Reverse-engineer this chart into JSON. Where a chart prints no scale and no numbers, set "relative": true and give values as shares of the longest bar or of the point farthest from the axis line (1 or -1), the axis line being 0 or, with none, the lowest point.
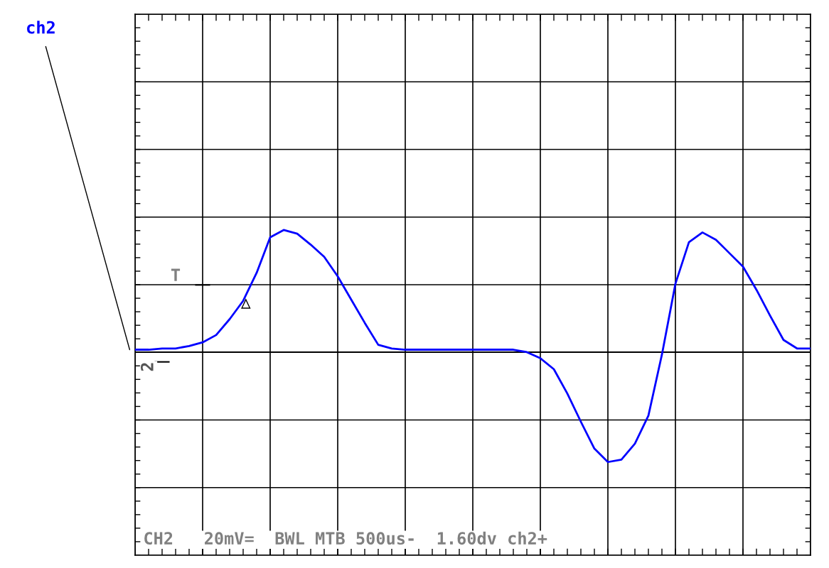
{
  "chart_data": {
    "type": "line",
    "relative": true,
    "grid": true,
    "marker": "none",
    "line_style": "solid",
    "categories": [
      null,
      null,
      null,
      null,
      null,
      null,
      null,
      null,
      null,
      null,
      null,
      null,
      null,
      null,
      null,
      null,
      null,
      null,
      null,
      null,
      null,
      null,
      null,
      null,
      null,
      null,
      null,
      null,
      null,
      null,
      null,
      null,
      null,
      null,
      null,
      null,
      null,
      null,
      null,
      null,
      null,
      null,
      null,
      null,
      null,
      null,
      null,
      null,
      null,
      null,
      null
    ],
    "series": [
      {
        "color": "#0000ff",
        "values": [
          0.02,
          0.02,
          0.03,
          0.03,
          0.05,
          0.08,
          0.14,
          0.27,
          0.42,
          0.65,
          0.94,
          1.0,
          0.97,
          0.88,
          0.78,
          0.62,
          0.43,
          0.24,
          0.06,
          0.03,
          0.02,
          0.02,
          0.02,
          0.02,
          0.02,
          0.02,
          0.02,
          0.02,
          0.02,
          0.0,
          -0.05,
          -0.14,
          -0.34,
          -0.57,
          -0.79,
          -0.9,
          -0.88,
          -0.75,
          -0.52,
          -0.02,
          0.56,
          0.9,
          0.98,
          0.92,
          0.81,
          0.7,
          0.51,
          0.3,
          0.1,
          0.03,
          0.03
        ]
      }
    ],
    "annotations": [
      "ch2",
      "T",
      "2",
      "CH2   20mV=  BWL MTB 500us-  1.60dv ch2+"
    ]
  }
}
